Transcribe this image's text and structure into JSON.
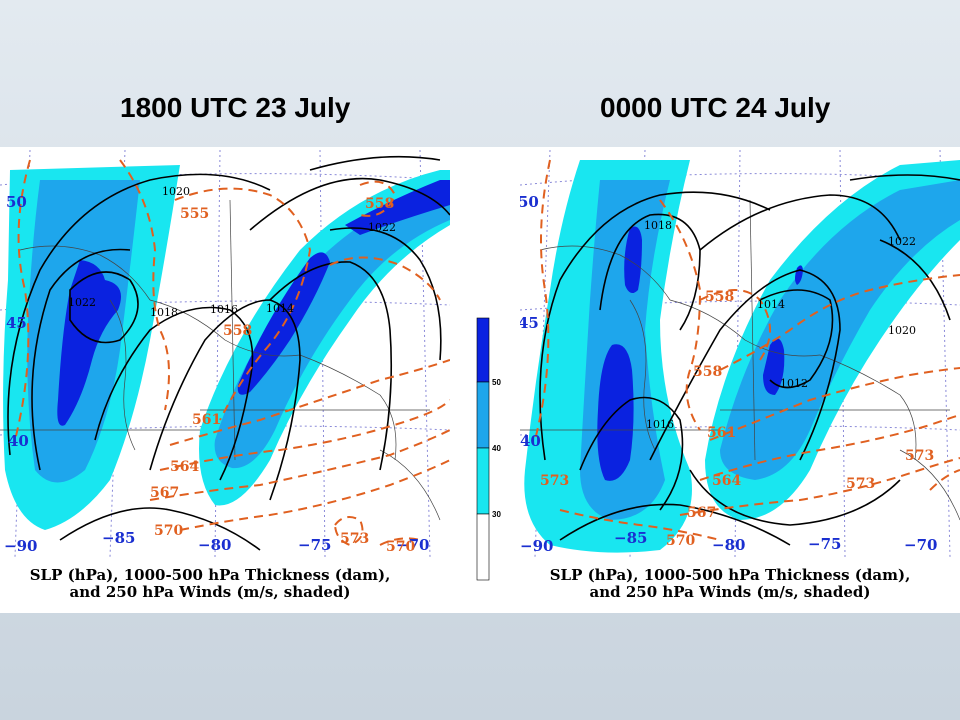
{
  "panels": [
    {
      "title": "1800 UTC 23 July",
      "pressure_labels": [
        "1020",
        "1022",
        "1018",
        "1016",
        "1014"
      ],
      "thickness_labels": [
        "555",
        "558",
        "558",
        "561",
        "564",
        "567",
        "570",
        "573",
        "570"
      ],
      "lat_labels": [
        "50",
        "45",
        "40"
      ],
      "lon_labels": [
        "−90",
        "−85",
        "−80",
        "−75",
        "−70"
      ],
      "caption_line1": "SLP (hPa), 1000-500 hPa Thickness (dam),",
      "caption_line2": "and 250 hPa Winds (m/s, shaded)"
    },
    {
      "title": "0000 UTC 24 July",
      "pressure_labels": [
        "1018",
        "1022",
        "1014",
        "1020",
        "1012",
        "1016"
      ],
      "thickness_labels": [
        "558",
        "558",
        "561",
        "564",
        "567",
        "570",
        "573",
        "573",
        "573"
      ],
      "lat_labels": [
        "50",
        "45",
        "40"
      ],
      "lon_labels": [
        "−90",
        "−85",
        "−80",
        "−75",
        "−70"
      ],
      "caption_line1": "SLP (hPa), 1000-500 hPa Thickness (dam),",
      "caption_line2": "and 250 hPa Winds (m/s, shaded)"
    }
  ],
  "legend": {
    "ticks": [
      "50",
      "40",
      "30"
    ],
    "colors": {
      "level_50": "#0a22e0",
      "level_40": "#1ea6ec",
      "level_30": "#19e6f0",
      "below_30": "#ffffff"
    }
  },
  "colors": {
    "wind_fast": "#0a22e0",
    "wind_mid": "#1ea6ec",
    "wind_slow": "#19e6f0",
    "thickness_contour": "#e06020",
    "pressure_contour": "#000000",
    "coordinate_label": "#1a2fd0"
  }
}
